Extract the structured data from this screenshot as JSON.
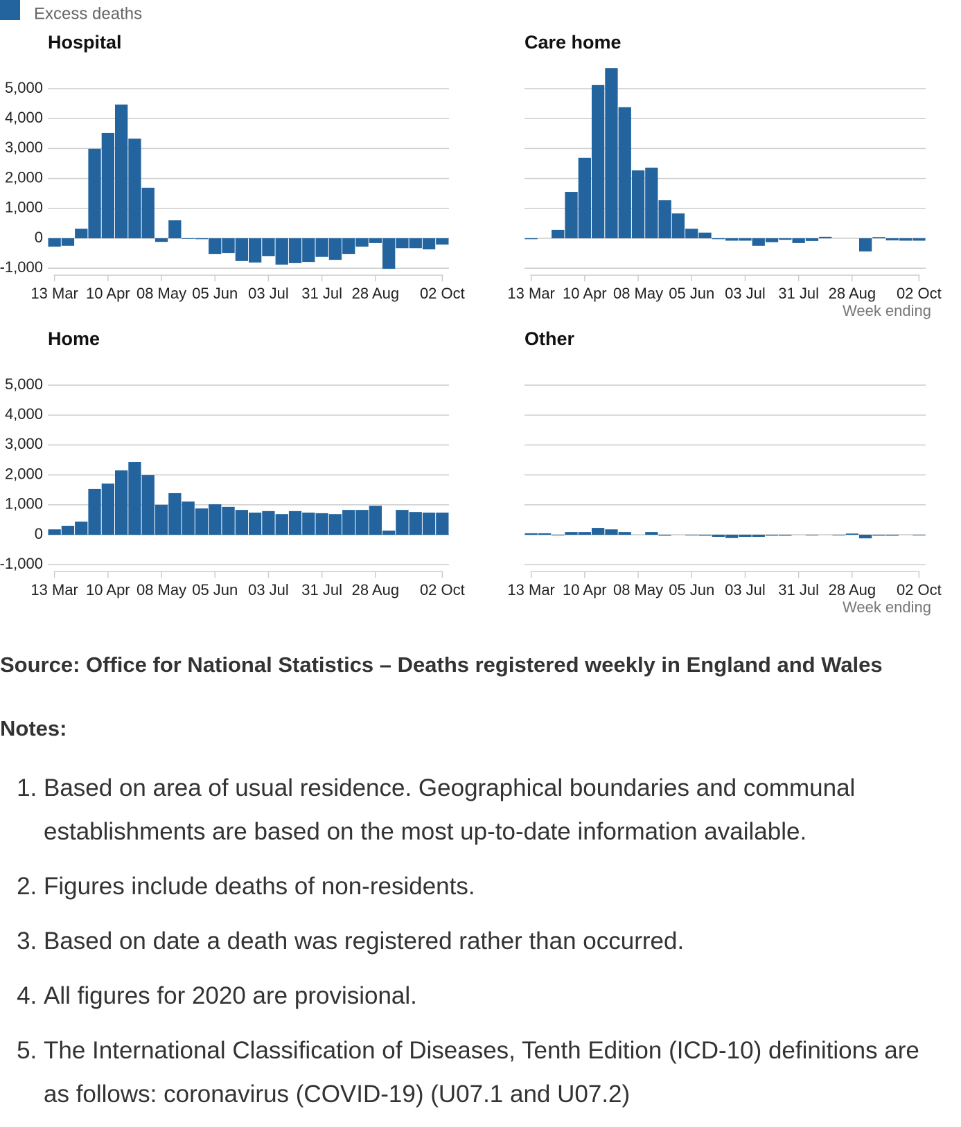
{
  "chart_data": [
    {
      "type": "bar",
      "title": "Hospital",
      "categories": [
        "13 Mar",
        null,
        null,
        null,
        "10 Apr",
        null,
        null,
        null,
        "08 May",
        null,
        null,
        null,
        "05 Jun",
        null,
        null,
        null,
        "03 Jul",
        null,
        null,
        null,
        "31 Jul",
        null,
        null,
        null,
        "28 Aug",
        null,
        null,
        null,
        null,
        "02 Oct"
      ],
      "series": [
        {
          "name": "Excess deaths",
          "color": "#23649e",
          "values": [
            -280,
            -250,
            320,
            2990,
            3520,
            4470,
            3330,
            1690,
            -120,
            600,
            -20,
            -30,
            -530,
            -490,
            -760,
            -810,
            -600,
            -880,
            -830,
            -790,
            -620,
            -720,
            -530,
            -280,
            -160,
            -1020,
            -330,
            -330,
            -370,
            -210
          ]
        }
      ],
      "ylim": [
        -1000,
        5750
      ],
      "yticks": [
        {
          "value": -1000,
          "label": "-1,000"
        },
        0,
        {
          "value": 1000,
          "label": "1,000"
        },
        {
          "value": 2000,
          "label": "2,000"
        },
        {
          "value": 3000,
          "label": "3,000"
        },
        {
          "value": 4000,
          "label": "4,000"
        },
        {
          "value": 5000,
          "label": "5,000"
        }
      ],
      "grid": true
    },
    {
      "type": "bar",
      "title": "Care home",
      "categories": [
        "13 Mar",
        null,
        null,
        null,
        "10 Apr",
        null,
        null,
        null,
        "08 May",
        null,
        null,
        null,
        "05 Jun",
        null,
        null,
        null,
        "03 Jul",
        null,
        null,
        null,
        "31 Jul",
        null,
        null,
        null,
        "28 Aug",
        null,
        null,
        null,
        null,
        "02 Oct"
      ],
      "series": [
        {
          "name": "Excess deaths",
          "color": "#23649e",
          "values": [
            -30,
            0,
            280,
            1550,
            2690,
            5120,
            5690,
            4380,
            2270,
            2360,
            1270,
            830,
            320,
            190,
            -30,
            -80,
            -80,
            -250,
            -130,
            -50,
            -160,
            -90,
            50,
            0,
            0,
            -440,
            40,
            -70,
            -80,
            -80
          ]
        }
      ],
      "ylim": [
        -1000,
        5750
      ],
      "yticks": [
        {
          "value": -1000,
          "label": "-1,000"
        },
        0,
        {
          "value": 1000,
          "label": "1,000"
        },
        {
          "value": 2000,
          "label": "2,000"
        },
        {
          "value": 3000,
          "label": "3,000"
        },
        {
          "value": 4000,
          "label": "4,000"
        },
        {
          "value": 5000,
          "label": "5,000"
        }
      ],
      "grid": true,
      "xlabel": "Week ending"
    },
    {
      "type": "bar",
      "title": "Home",
      "categories": [
        "13 Mar",
        null,
        null,
        null,
        "10 Apr",
        null,
        null,
        null,
        "08 May",
        null,
        null,
        null,
        "05 Jun",
        null,
        null,
        null,
        "03 Jul",
        null,
        null,
        null,
        "31 Jul",
        null,
        null,
        null,
        "28 Aug",
        null,
        null,
        null,
        null,
        "02 Oct"
      ],
      "series": [
        {
          "name": "Excess deaths",
          "color": "#23649e",
          "values": [
            180,
            300,
            440,
            1530,
            1710,
            2150,
            2430,
            1990,
            1000,
            1390,
            1110,
            880,
            1020,
            930,
            830,
            740,
            790,
            690,
            790,
            740,
            720,
            690,
            830,
            830,
            970,
            140,
            830,
            760,
            740,
            740
          ]
        }
      ],
      "ylim": [
        -1000,
        5750
      ],
      "yticks": [
        {
          "value": -1000,
          "label": "-1,000"
        },
        0,
        {
          "value": 1000,
          "label": "1,000"
        },
        {
          "value": 2000,
          "label": "2,000"
        },
        {
          "value": 3000,
          "label": "3,000"
        },
        {
          "value": 4000,
          "label": "4,000"
        },
        {
          "value": 5000,
          "label": "5,000"
        }
      ],
      "grid": true
    },
    {
      "type": "bar",
      "title": "Other",
      "categories": [
        "13 Mar",
        null,
        null,
        null,
        "10 Apr",
        null,
        null,
        null,
        "08 May",
        null,
        null,
        null,
        "05 Jun",
        null,
        null,
        null,
        "03 Jul",
        null,
        null,
        null,
        "31 Jul",
        null,
        null,
        null,
        "28 Aug",
        null,
        null,
        null,
        null,
        "02 Oct"
      ],
      "series": [
        {
          "name": "Excess deaths",
          "color": "#23649e",
          "values": [
            50,
            50,
            -20,
            90,
            90,
            230,
            180,
            90,
            0,
            90,
            -30,
            0,
            -20,
            -30,
            -70,
            -110,
            -70,
            -70,
            -30,
            -30,
            0,
            -20,
            0,
            -20,
            40,
            -120,
            -30,
            -30,
            0,
            -20
          ]
        }
      ],
      "ylim": [
        -1000,
        5750
      ],
      "yticks": [
        {
          "value": -1000,
          "label": "-1,000"
        },
        0,
        {
          "value": 1000,
          "label": "1,000"
        },
        {
          "value": 2000,
          "label": "2,000"
        },
        {
          "value": 3000,
          "label": "3,000"
        },
        {
          "value": 4000,
          "label": "4,000"
        },
        {
          "value": 5000,
          "label": "5,000"
        }
      ],
      "grid": true,
      "xlabel": "Week ending"
    }
  ],
  "source": "Source: Office for National Statistics – Deaths registered weekly in England and Wales",
  "notes_title": "Notes:",
  "notes": [
    "Based on area of usual residence. Geographical boundaries and communal establishments are based on the most up-to-date information available.",
    "Figures include deaths of non-residents.",
    "Based on date a death was registered rather than occurred.",
    "All figures for 2020 are provisional.",
    "The International Classification of Diseases, Tenth Edition (ICD-10) definitions are as follows: coronavirus (COVID-19) (U07.1 and U07.2)"
  ]
}
